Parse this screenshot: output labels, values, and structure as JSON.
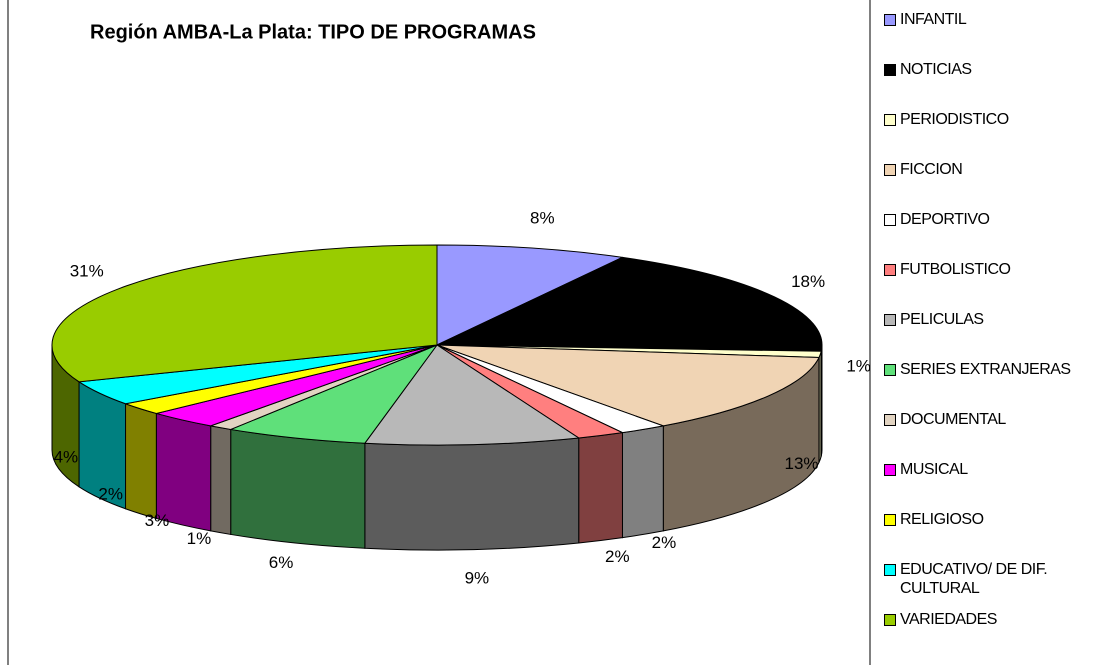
{
  "chart_data": {
    "type": "pie3d",
    "title": "Región AMBA-La Plata: TIPO DE PROGRAMAS",
    "categories": [
      "INFANTIL",
      "NOTICIAS",
      "PERIODISTICO",
      "FICCION",
      "DEPORTIVO",
      "FUTBOLISTICO",
      "PELICULAS",
      "SERIES EXTRANJERAS",
      "DOCUMENTAL",
      "MUSICAL",
      "RELIGIOSO",
      "EDUCATIVO/ DE DIF. CULTURAL",
      "VARIEDADES"
    ],
    "values": [
      8,
      18,
      1,
      13,
      2,
      2,
      9,
      6,
      1,
      3,
      2,
      4,
      31
    ],
    "value_labels": [
      "8%",
      "18%",
      "1%",
      "13%",
      "2%",
      "2%",
      "9%",
      "6%",
      "1%",
      "3%",
      "2%",
      "4%",
      "31%"
    ],
    "colors": [
      "#9999ff",
      "#000000",
      "#ffffcc",
      "#f0d4b4",
      "#ffffff",
      "#ff7f7f",
      "#b8b8b8",
      "#5fe07a",
      "#e2d4c2",
      "#ff00ff",
      "#ffff00",
      "#00ffff",
      "#99cc00"
    ],
    "legend": "right"
  }
}
